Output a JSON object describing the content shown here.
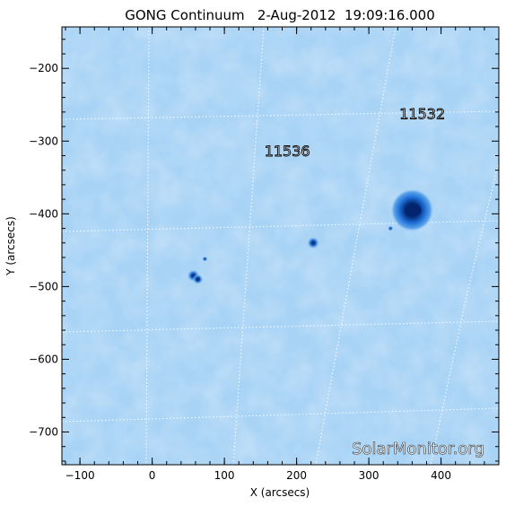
{
  "title": "GONG Continuum   2-Aug-2012  19:09:16.000",
  "watermark": "SolarMonitor.org",
  "axes": {
    "xlabel": "X (arcsecs)",
    "ylabel": "Y (arcsecs)",
    "xlim": [
      -125,
      480
    ],
    "ylim": [
      -745,
      -143
    ],
    "xticks": [
      -100,
      0,
      100,
      200,
      300,
      400
    ],
    "yticks": [
      -200,
      -300,
      -400,
      -500,
      -600,
      -700
    ]
  },
  "colors": {
    "background": "#a9d3f5",
    "spot_core": "#04246e",
    "spot_penumbra": "#2a7fe0",
    "grid": "#ffffff"
  },
  "regions": [
    {
      "number": "11532",
      "x": 374,
      "y": -262
    },
    {
      "number": "11536",
      "x": 187,
      "y": -313
    }
  ],
  "sunspots": [
    {
      "x": 360,
      "y": -395,
      "size": "large"
    },
    {
      "x": 223,
      "y": -440,
      "size": "small"
    },
    {
      "x": 57,
      "y": -485,
      "size": "small"
    },
    {
      "x": 73,
      "y": -462,
      "size": "tiny"
    },
    {
      "x": 330,
      "y": -420,
      "size": "tiny"
    }
  ]
}
